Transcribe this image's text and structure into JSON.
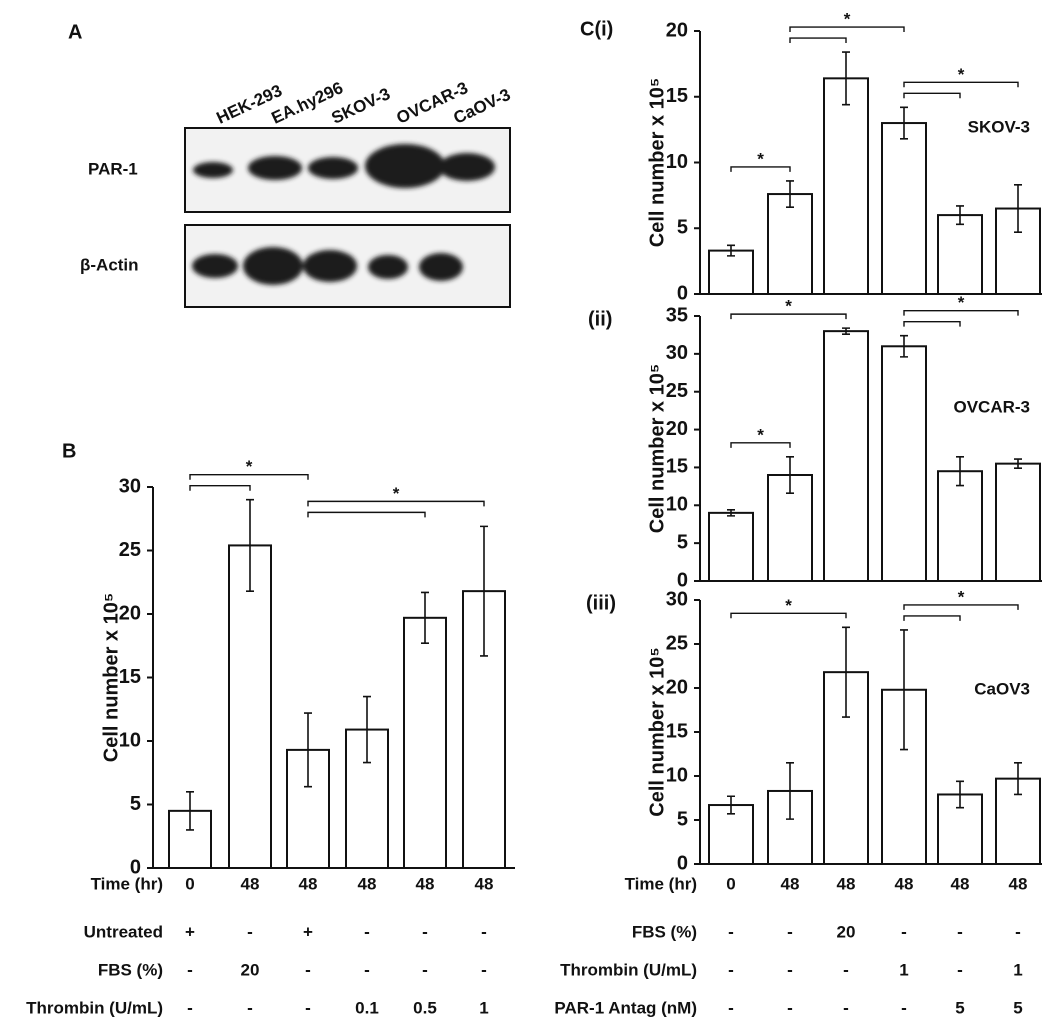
{
  "blot": {
    "panel": "A",
    "lanes": [
      "HEK-293",
      "EA.hy296",
      "SKOV-3",
      "OVCAR-3",
      "CaOV-3"
    ],
    "rows": [
      "PAR-1",
      "β-Actin"
    ]
  },
  "chart_data": [
    {
      "type": "bar",
      "panel": "B",
      "y_label": "Cell number  x 10⁵",
      "color": "#ffffff",
      "ylim": [
        0,
        30
      ],
      "yticks": [
        0,
        5,
        10,
        15,
        20,
        25,
        30
      ],
      "values": [
        4.5,
        25.4,
        9.3,
        10.9,
        19.7,
        21.8
      ],
      "errors": [
        1.5,
        3.6,
        2.9,
        2.6,
        2.0,
        5.1
      ],
      "significance": [
        {
          "label": "*",
          "from": 0,
          "to": [
            1,
            2
          ]
        },
        {
          "label": "*",
          "from": 2,
          "to": [
            4,
            5
          ]
        }
      ],
      "conditions": [
        {
          "label": "Time (hr)",
          "values": [
            "0",
            "48",
            "48",
            "48",
            "48",
            "48"
          ]
        },
        {
          "label": "Untreated",
          "values": [
            "+",
            "-",
            "+",
            "-",
            "-",
            "-"
          ]
        },
        {
          "label": "FBS (%)",
          "values": [
            "-",
            "20",
            "-",
            "-",
            "-",
            "-"
          ]
        },
        {
          "label": "Thrombin (U/mL)",
          "values": [
            "-",
            "-",
            "-",
            "0.1",
            "0.5",
            "1"
          ]
        }
      ]
    },
    {
      "type": "bar",
      "panel": "C(i)",
      "inset": "SKOV-3",
      "y_label": "Cell number  x 10⁵",
      "color": "#ffffff",
      "ylim": [
        0,
        20
      ],
      "yticks": [
        0,
        5,
        10,
        15,
        20
      ],
      "values": [
        3.3,
        7.6,
        16.4,
        13.0,
        6.0,
        6.5
      ],
      "errors": [
        0.4,
        1.0,
        2.0,
        1.2,
        0.7,
        1.8
      ],
      "significance": [
        {
          "label": "*",
          "from": 0,
          "to": [
            1
          ]
        },
        {
          "label": "*",
          "from": 1,
          "to": [
            2,
            3
          ]
        },
        {
          "label": "*",
          "from": 3,
          "to": [
            4,
            5
          ]
        }
      ]
    },
    {
      "type": "bar",
      "panel": "(ii)",
      "inset": "OVCAR-3",
      "y_label": "Cell number  x 10⁵",
      "color": "#ffffff",
      "ylim": [
        0,
        35
      ],
      "yticks": [
        0,
        5,
        10,
        15,
        20,
        25,
        30,
        35
      ],
      "values": [
        9.0,
        14.0,
        33.0,
        31.0,
        14.5,
        15.5
      ],
      "errors": [
        0.4,
        2.4,
        0.4,
        1.4,
        1.9,
        0.6
      ],
      "significance": [
        {
          "label": "*",
          "from": 0,
          "to": [
            1
          ]
        },
        {
          "label": "*",
          "from": 0,
          "to": [
            2
          ]
        },
        {
          "label": "*",
          "from": 3,
          "to": [
            4,
            5
          ]
        }
      ]
    },
    {
      "type": "bar",
      "panel": "(iii)",
      "inset": "CaOV3",
      "y_label": "Cell number  x 10⁵",
      "color": "#ffffff",
      "ylim": [
        0,
        30
      ],
      "yticks": [
        0,
        5,
        10,
        15,
        20,
        25,
        30
      ],
      "values": [
        6.7,
        8.3,
        21.8,
        19.8,
        7.9,
        9.7
      ],
      "errors": [
        1.0,
        3.2,
        5.1,
        6.8,
        1.5,
        1.8
      ],
      "significance": [
        {
          "label": "*",
          "from": 0,
          "to": [
            2
          ]
        },
        {
          "label": "*",
          "from": 3,
          "to": [
            4,
            5
          ]
        }
      ],
      "conditions": [
        {
          "label": "Time (hr)",
          "values": [
            "0",
            "48",
            "48",
            "48",
            "48",
            "48"
          ]
        },
        {
          "label": "FBS (%)",
          "values": [
            "-",
            "-",
            "20",
            "-",
            "-",
            "-"
          ]
        },
        {
          "label": "Thrombin (U/mL)",
          "values": [
            "-",
            "-",
            "-",
            "1",
            "-",
            "1"
          ]
        },
        {
          "label": "PAR-1 Antag (nM)",
          "values": [
            "-",
            "-",
            "-",
            "-",
            "5",
            "5"
          ]
        }
      ]
    }
  ]
}
